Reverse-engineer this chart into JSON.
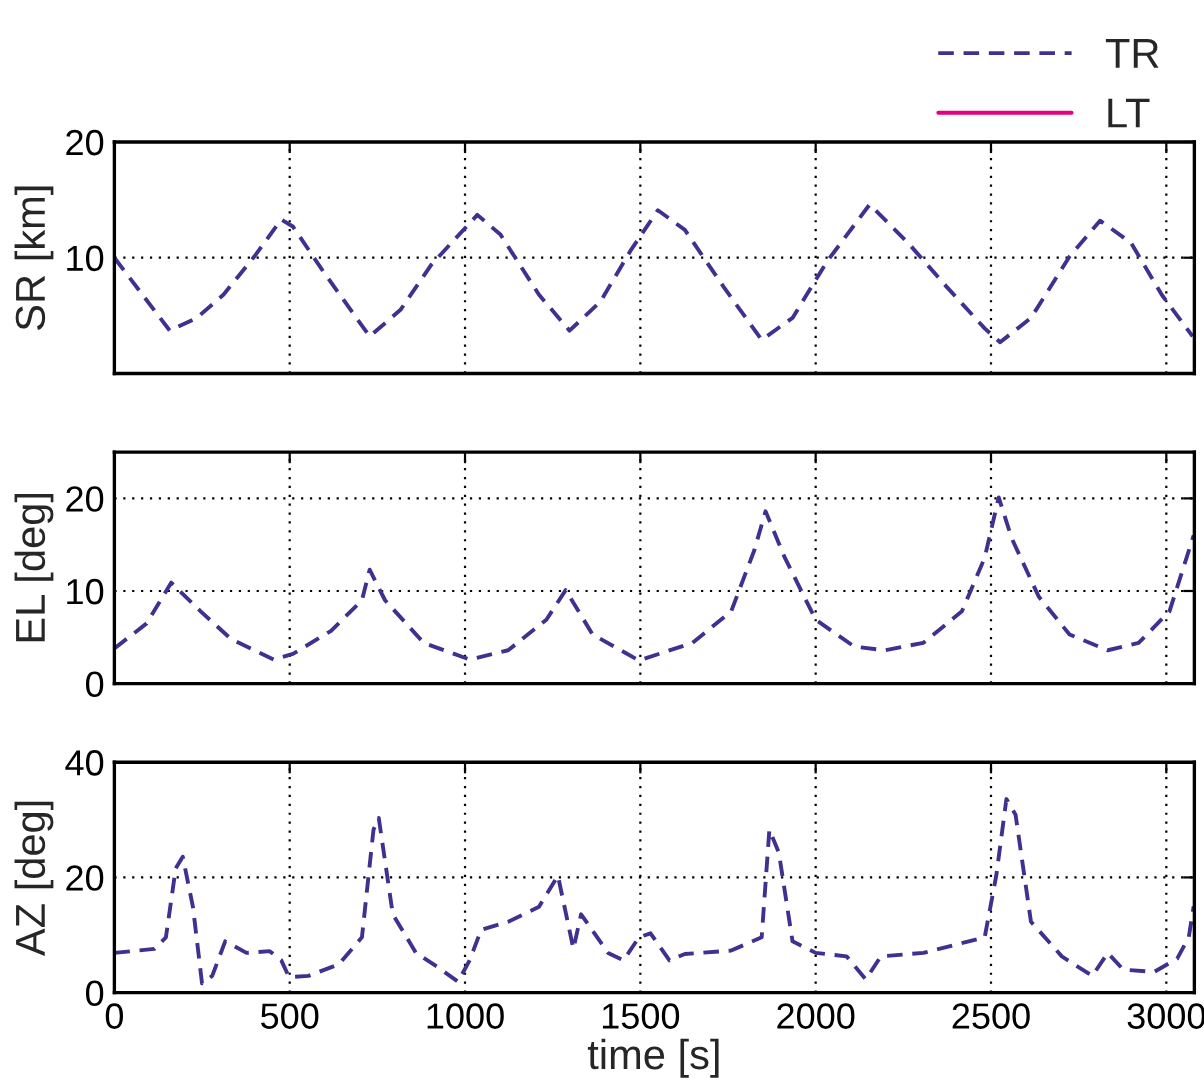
{
  "chart_data": [
    {
      "type": "line",
      "ylabel": "SR [km]",
      "xlim": [
        0,
        3080
      ],
      "xticks": [
        0,
        500,
        1000,
        1500,
        2000,
        2500,
        3000
      ],
      "ylim": [
        0,
        20
      ],
      "yticks": [
        10,
        20
      ],
      "tick_labels": "y",
      "grid": true,
      "legend": "top right",
      "x": [
        0,
        158,
        235,
        311,
        399,
        476,
        509,
        596,
        728,
        816,
        904,
        1035,
        1101,
        1211,
        1298,
        1386,
        1474,
        1550,
        1627,
        1737,
        1846,
        1934,
        2033,
        2154,
        2263,
        2373,
        2482,
        2526,
        2614,
        2724,
        2811,
        2899,
        2987,
        3075
      ],
      "series": [
        {
          "name": "TR",
          "color": "#40308f",
          "line_style": "dashed",
          "values": [
            10,
            3.7,
            4.8,
            6.8,
            10.1,
            13.3,
            12.7,
            8.8,
            3.2,
            5.5,
            9.4,
            13.7,
            12.0,
            6.8,
            3.7,
            6.2,
            10.7,
            14.1,
            12.4,
            7.5,
            2.9,
            4.8,
            9.7,
            14.6,
            11.3,
            7.5,
            3.9,
            2.7,
            4.8,
            10.1,
            13.2,
            11.3,
            6.8,
            3.2
          ]
        },
        {
          "name": "LT",
          "color": "#e6007e",
          "line_style": "solid",
          "values": [
            null,
            null,
            null,
            null,
            null,
            null,
            null,
            null,
            null,
            null,
            null,
            null,
            null,
            null,
            null,
            null,
            null,
            null,
            null,
            null,
            null,
            null,
            null,
            null,
            null,
            null,
            null,
            null,
            null,
            null,
            null,
            null,
            null,
            null
          ]
        }
      ]
    },
    {
      "type": "line",
      "ylabel": "EL [deg]",
      "xlim": [
        0,
        3080
      ],
      "xticks": [
        0,
        500,
        1000,
        1500,
        2000,
        2500,
        3000
      ],
      "ylim": [
        0,
        25
      ],
      "yticks": [
        0,
        10,
        20
      ],
      "tick_labels": "y",
      "grid": true,
      "x": [
        0,
        92,
        162,
        246,
        333,
        454,
        509,
        618,
        706,
        728,
        772,
        882,
        1013,
        1123,
        1232,
        1287,
        1364,
        1496,
        1649,
        1759,
        1825,
        1857,
        1912,
        2000,
        2110,
        2197,
        2307,
        2417,
        2482,
        2522,
        2559,
        2636,
        2724,
        2833,
        2921,
        3009,
        3078
      ],
      "series": [
        {
          "color": "#40308f",
          "line_style": "dashed",
          "values": [
            3.8,
            6.5,
            10.9,
            7.8,
            4.8,
            2.6,
            3.2,
            5.7,
            9.0,
            12.3,
            9.0,
            4.4,
            2.6,
            3.6,
            6.9,
            10.1,
            5.3,
            2.5,
            4.4,
            7.8,
            14.4,
            18.6,
            13.6,
            6.9,
            4.0,
            3.6,
            4.4,
            7.8,
            13.6,
            20.1,
            15.7,
            9.4,
            5.3,
            3.6,
            4.4,
            7.8,
            16.0
          ]
        },
        {
          "color": "#e6007e",
          "line_style": "solid",
          "values": [
            null,
            null,
            null,
            null,
            null,
            null,
            null,
            null,
            null,
            null,
            null,
            null,
            null,
            null,
            null,
            null,
            null,
            null,
            null,
            null,
            null,
            null,
            null,
            null,
            null,
            null,
            null,
            null,
            null,
            null,
            null,
            null,
            null,
            null,
            null,
            null,
            null
          ]
        }
      ]
    },
    {
      "type": "line",
      "xlabel": "time [s]",
      "ylabel": "AZ [deg]",
      "xlim": [
        0,
        3080
      ],
      "xticks": [
        0,
        500,
        1000,
        1500,
        2000,
        2500,
        3000
      ],
      "ylim": [
        0,
        40
      ],
      "yticks": [
        0,
        20,
        40
      ],
      "grid": true,
      "x": [
        0,
        114,
        147,
        175,
        195,
        224,
        250,
        279,
        316,
        377,
        443,
        476,
        498,
        553,
        640,
        706,
        739,
        754,
        794,
        860,
        925,
        980,
        1013,
        1046,
        1123,
        1211,
        1265,
        1309,
        1331,
        1408,
        1452,
        1496,
        1529,
        1583,
        1627,
        1759,
        1846,
        1868,
        1895,
        1934,
        2000,
        2088,
        2143,
        2186,
        2307,
        2482,
        2515,
        2544,
        2570,
        2614,
        2702,
        2789,
        2833,
        2877,
        2965,
        3031,
        3064,
        3078
      ],
      "series": [
        {
          "color": "#40308f",
          "line_style": "dashed",
          "values": [
            6.9,
            7.6,
            9.6,
            21.6,
            23.6,
            14.9,
            1.6,
            2.9,
            8.9,
            6.9,
            7.2,
            5.6,
            2.7,
            2.9,
            4.9,
            9.6,
            28.3,
            30.3,
            13.6,
            6.9,
            4.3,
            1.9,
            5.6,
            10.9,
            12.3,
            14.9,
            20.3,
            7.6,
            13.6,
            6.9,
            5.6,
            9.6,
            10.3,
            5.6,
            6.7,
            7.3,
            9.6,
            28.3,
            24.3,
            8.9,
            6.9,
            6.3,
            2.3,
            6.3,
            6.9,
            9.6,
            20.3,
            33.6,
            30.9,
            12.3,
            6.3,
            2.9,
            6.9,
            4.0,
            3.6,
            5.9,
            9.6,
            15.0
          ]
        },
        {
          "color": "#e6007e",
          "line_style": "solid",
          "values": [
            null,
            null,
            null,
            null,
            null,
            null,
            null,
            null,
            null,
            null,
            null,
            null,
            null,
            null,
            null,
            null,
            null,
            null,
            null,
            null,
            null,
            null,
            null,
            null,
            null,
            null,
            null,
            null,
            null,
            null,
            null,
            null,
            null,
            null,
            null,
            null,
            null,
            null,
            null,
            null,
            null,
            null,
            null,
            null,
            null,
            null,
            null,
            null,
            null,
            null,
            null,
            null,
            null,
            null,
            null,
            null,
            null,
            null
          ]
        }
      ]
    }
  ]
}
